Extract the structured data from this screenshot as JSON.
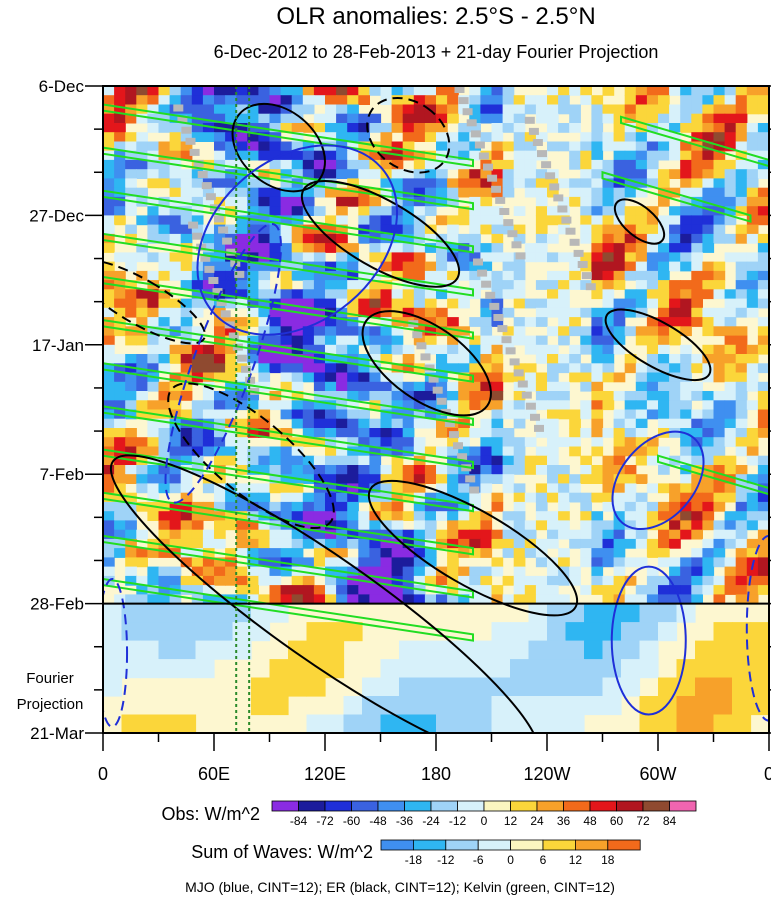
{
  "chart_data": {
    "type": "heatmap",
    "title": "OLR anomalies: 2.5°S - 2.5°N",
    "subtitle": "6-Dec-2012 to 28-Feb-2013 + 21-day Fourier Projection",
    "x_ticks": [
      "0",
      "60E",
      "120E",
      "180",
      "120W",
      "60W",
      "0"
    ],
    "x_tick_values": [
      0,
      60,
      120,
      180,
      240,
      300,
      360
    ],
    "xlim": [
      0,
      360
    ],
    "y_ticks": [
      "6-Dec",
      "27-Dec",
      "17-Jan",
      "7-Feb",
      "28-Feb",
      "21-Mar"
    ],
    "y_tick_days": [
      0,
      21,
      42,
      63,
      84,
      105
    ],
    "ylim_days": [
      0,
      105
    ],
    "projection_start_day": 84,
    "projection_label": [
      "Fourier",
      "Projection"
    ],
    "reference_longitudes": [
      72,
      79
    ],
    "obs_colorbar": {
      "label": "Obs: W/m^2",
      "levels": [
        "-84",
        "-72",
        "-60",
        "-48",
        "-36",
        "-24",
        "-12",
        "0",
        "12",
        "24",
        "36",
        "48",
        "60",
        "72",
        "84"
      ],
      "colors": [
        "#8a2be2",
        "#1c1c9c",
        "#1f2fd8",
        "#3a62e0",
        "#3f8ff0",
        "#2fb6f2",
        "#9fd3f7",
        "#d7f1fa",
        "#fbf6c0",
        "#fbd63a",
        "#f7a12a",
        "#f26a1b",
        "#e3161b",
        "#b11620",
        "#8f4a30",
        "#f065b0"
      ]
    },
    "waves_colorbar": {
      "label": "Sum of Waves: W/m^2",
      "levels": [
        "-18",
        "-12",
        "-6",
        "0",
        "6",
        "12",
        "18"
      ],
      "colors": [
        "#3f8ff0",
        "#2fb6f2",
        "#9fd3f7",
        "#d7f1fa",
        "#fbf6c0",
        "#fbd63a",
        "#f7a12a",
        "#f26a1b"
      ]
    },
    "contour_legend": "MJO (blue, CINT=12); ER (black, CINT=12); Kelvin (green, CINT=12)",
    "contour_colors": {
      "MJO": "#1f2fd8",
      "ER": "#000000",
      "Kelvin": "#22dd22"
    },
    "missing_color": "#b8b8b8"
  }
}
